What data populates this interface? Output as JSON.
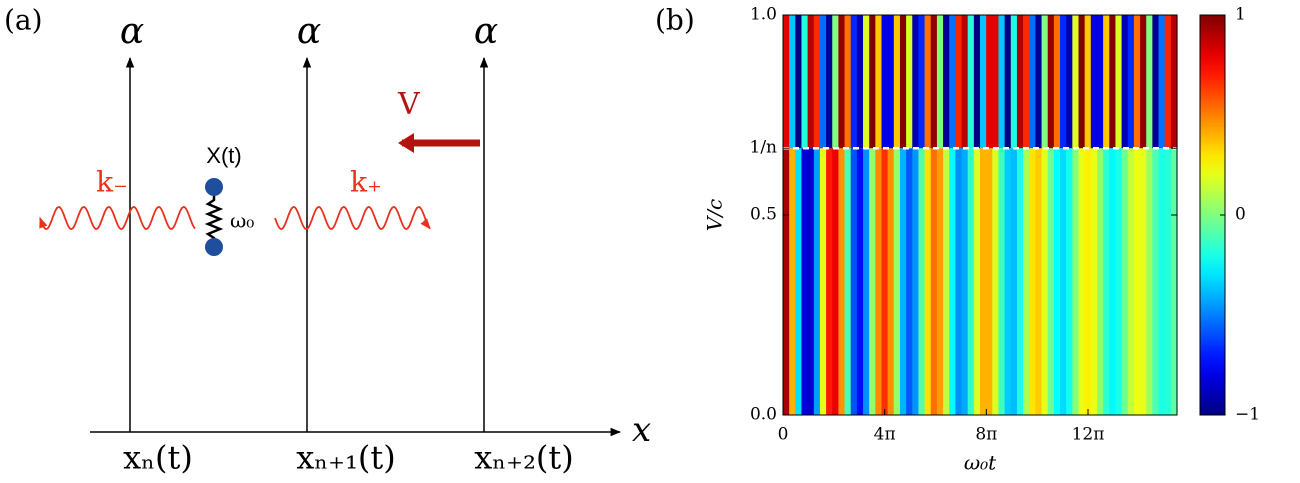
{
  "panel_a": {
    "label": "(a)",
    "axis_label": "x",
    "alphas": [
      "α",
      "α",
      "α"
    ],
    "positions": [
      "xₙ(t)",
      "xₙ₊₁(t)",
      "xₙ₊₂(t)"
    ],
    "velocity": "V",
    "oscillator": "X(t)",
    "frequency": "ω₀",
    "wave_left": "k₋",
    "wave_right": "k₊"
  },
  "chart_data": {
    "type": "heatmap",
    "panel_label": "(b)",
    "xlabel": "ω₀t",
    "ylabel": "V/c",
    "xlim": [
      0,
      48.7
    ],
    "ylim": [
      0,
      1
    ],
    "xticks": [
      0,
      {
        "value": 12.566,
        "label": "4π"
      },
      {
        "value": 25.133,
        "label": "8π"
      },
      {
        "value": 37.699,
        "label": "12π"
      }
    ],
    "yticks": [
      {
        "value": 0,
        "label": "0.0"
      },
      0.5,
      {
        "value": 0.667,
        "label": "1/n"
      },
      {
        "value": 1,
        "label": "1.0"
      }
    ],
    "ybins": [
      0,
      0.667,
      1
    ],
    "zlim": [
      -1,
      1
    ],
    "zticks": [
      1,
      0,
      {
        "value": -1,
        "label": "−1"
      }
    ],
    "colormap": "jet",
    "z": [
      [
        0.92,
        0.4,
        -0.31,
        -0.82,
        -0.85,
        -0.44,
        0.2,
        0.7,
        0.79,
        0.46,
        -0.11,
        -0.59,
        -0.73,
        -0.47,
        0.03,
        0.48,
        0.66,
        0.47,
        0.04,
        -0.4,
        -0.58,
        -0.46,
        -0.09,
        0.31,
        0.53,
        0.44,
        0.13,
        -0.24,
        -0.47,
        -0.42,
        -0.16,
        0.18,
        0.4,
        0.4,
        0.18,
        -0.13,
        -0.35,
        -0.38,
        -0.2,
        0.08,
        0.3,
        0.35,
        0.2,
        -0.04,
        -0.25,
        -0.32,
        -0.21,
        0.01,
        0.21,
        0.28,
        0.21,
        0.02,
        -0.16,
        -0.26,
        -0.2,
        -0.04,
        0.13,
        0.22,
        0.2,
        0.06,
        -0.1,
        -0.2,
        -0.18,
        -0.07
      ],
      [
        0.8,
        -0.36,
        -1.0,
        -0.19,
        0.9,
        0.67,
        -0.53,
        -0.96,
        0.0,
        0.96,
        0.53,
        -0.67,
        -0.9,
        0.19,
        1.0,
        0.36,
        -0.8,
        -0.8,
        0.36,
        0.99,
        0.17,
        -0.9,
        -0.67,
        0.53,
        0.96,
        0.0,
        -0.96,
        -0.53,
        0.68,
        0.89,
        -0.19,
        -1.0,
        -0.36,
        0.8,
        0.8,
        -0.36,
        -1.0,
        -0.19,
        0.9,
        0.67,
        -0.53,
        -0.96,
        0.0,
        0.96,
        0.53,
        -0.67,
        -0.9,
        0.19,
        1.0,
        0.36,
        -0.8,
        -0.8,
        0.36,
        0.99,
        0.17,
        -0.9,
        -0.67,
        0.53,
        0.96,
        0.0,
        -0.96,
        -0.53,
        0.68,
        0.89
      ]
    ]
  }
}
